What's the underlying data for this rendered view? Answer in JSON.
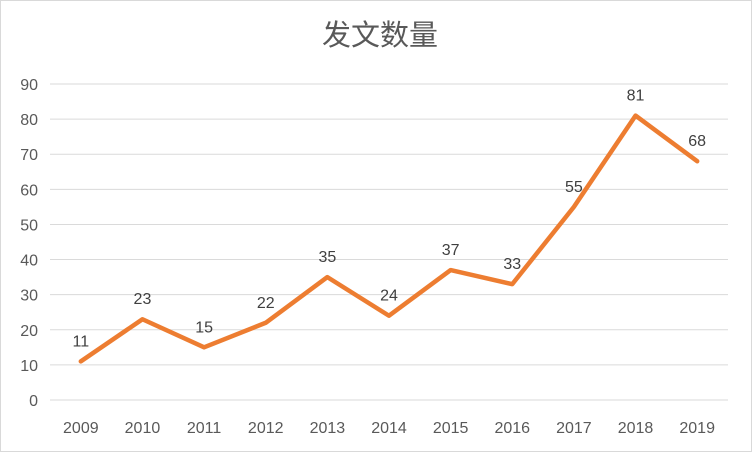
{
  "chart_data": {
    "type": "line",
    "title": "发文数量",
    "categories": [
      "2009",
      "2010",
      "2011",
      "2012",
      "2013",
      "2014",
      "2015",
      "2016",
      "2017",
      "2018",
      "2019"
    ],
    "values": [
      11,
      23,
      15,
      22,
      35,
      24,
      37,
      33,
      55,
      81,
      68
    ],
    "xlabel": "",
    "ylabel": "",
    "ylim": [
      0,
      90
    ],
    "ytick_step": 10,
    "yticks": [
      0,
      10,
      20,
      30,
      40,
      50,
      60,
      70,
      80,
      90
    ],
    "grid": true,
    "legend": "none",
    "data_labels": true,
    "colors": {
      "line": "#ED7D31",
      "grid": "#DADADA",
      "axis_label": "#595959",
      "data_label": "#404040",
      "title": "#595959",
      "background": "#FFFFFF",
      "border": "#D9D9D9"
    }
  }
}
